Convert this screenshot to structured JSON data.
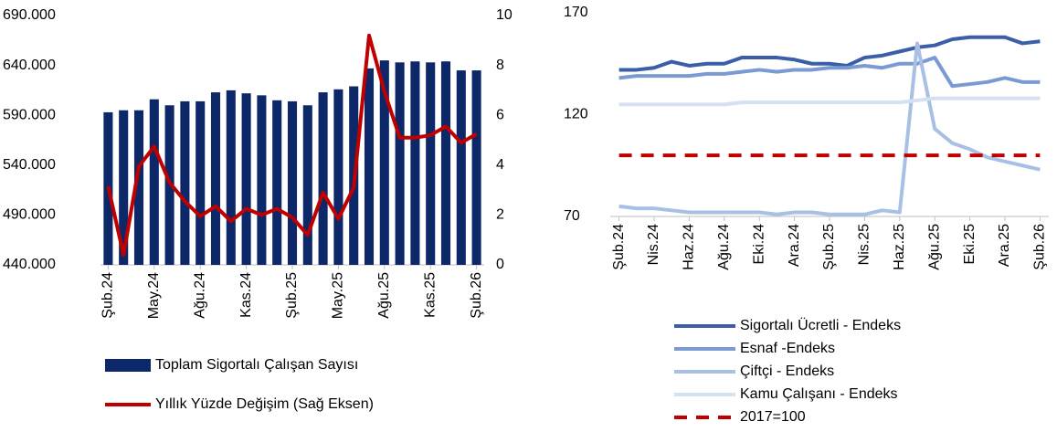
{
  "chart_data": [
    {
      "type": "bar",
      "categories": [
        "Şub.24",
        null,
        null,
        "May.24",
        null,
        null,
        "Ağu.24",
        null,
        null,
        "Kas.24",
        null,
        null,
        "Şub.25",
        null,
        null,
        "May.25",
        null,
        null,
        "Ağu.25",
        null,
        null,
        "Kas.25",
        null,
        null,
        "Şub.26"
      ],
      "series": [
        {
          "name": "Toplam Sigortalı Çalışan Sayısı",
          "type": "bar",
          "color": "#0c2868",
          "values": [
            593000,
            595000,
            595000,
            606000,
            600000,
            604000,
            604000,
            613000,
            615000,
            612000,
            610000,
            605000,
            604000,
            600000,
            613000,
            616000,
            619000,
            637000,
            645000,
            643000,
            644000,
            643000,
            644000,
            635000,
            635000
          ]
        },
        {
          "name": "Yıllık Yüzde Değişim (Sağ Eksen)",
          "type": "line",
          "axis": "y2",
          "color": "#c00000",
          "values": [
            3.15,
            0.4,
            3.95,
            4.75,
            3.3,
            2.55,
            1.95,
            2.35,
            1.75,
            2.25,
            2.0,
            2.25,
            1.9,
            1.2,
            2.9,
            1.85,
            3.1,
            9.2,
            6.95,
            5.1,
            5.1,
            5.2,
            5.55,
            4.9,
            5.25
          ]
        }
      ],
      "ylim": [
        440000,
        690000
      ],
      "yticks": [
        {
          "value": 440000,
          "label": "440.000"
        },
        {
          "value": 490000,
          "label": "490.000"
        },
        {
          "value": 540000,
          "label": "540.000"
        },
        {
          "value": 590000,
          "label": "590.000"
        },
        {
          "value": 640000,
          "label": "640.000"
        },
        {
          "value": 690000,
          "label": "690.000"
        }
      ],
      "y2lim": [
        0,
        10
      ],
      "y2ticks": [
        0,
        2,
        4,
        6,
        8,
        10
      ]
    },
    {
      "type": "line",
      "categories": [
        "Şub.24",
        null,
        "Nis.24",
        null,
        "Haz.24",
        null,
        "Ağu.24",
        null,
        "Eki.24",
        null,
        "Ara.24",
        null,
        "Şub.25",
        null,
        "Nis.25",
        null,
        "Haz.25",
        null,
        "Ağu.25",
        null,
        "Eki.25",
        null,
        "Ara.25",
        null,
        "Şub.26"
      ],
      "series": [
        {
          "name": "Sigortalı Ücretli - Endeks",
          "color": "#3a5fa8",
          "values": [
            142,
            142,
            143,
            146,
            144,
            145,
            145,
            148,
            148,
            148,
            147,
            145,
            145,
            144,
            148,
            149,
            151,
            153,
            154,
            157,
            158,
            158,
            158,
            155,
            156
          ]
        },
        {
          "name": "Esnaf -Endeks",
          "color": "#7b9ad4",
          "values": [
            138,
            139,
            139,
            139,
            139,
            140,
            140,
            141,
            142,
            141,
            142,
            142,
            143,
            143,
            144,
            143,
            145,
            145,
            148,
            134,
            135,
            136,
            138,
            136,
            136
          ]
        },
        {
          "name": "Çiftçi - Endeks",
          "color": "#a9c0e6",
          "values": [
            75,
            74,
            74,
            73,
            72,
            72,
            72,
            72,
            72,
            71,
            72,
            72,
            71,
            71,
            71,
            73,
            72,
            155,
            113,
            106,
            103,
            99,
            97,
            95,
            93
          ]
        },
        {
          "name": "Kamu Çalışanı - Endeks",
          "color": "#d5e0f2",
          "values": [
            125,
            125,
            125,
            125,
            125,
            125,
            125,
            126,
            126,
            126,
            126,
            126,
            126,
            126,
            126,
            126,
            126,
            127,
            128,
            128,
            128,
            128,
            128,
            128,
            128
          ]
        },
        {
          "name": "2017=100",
          "color": "#c00000",
          "dashed": true,
          "values": [
            100,
            100,
            100,
            100,
            100,
            100,
            100,
            100,
            100,
            100,
            100,
            100,
            100,
            100,
            100,
            100,
            100,
            100,
            100,
            100,
            100,
            100,
            100,
            100,
            100
          ]
        }
      ],
      "ylim": [
        70,
        170
      ],
      "yticks": [
        70,
        120,
        170
      ]
    }
  ]
}
